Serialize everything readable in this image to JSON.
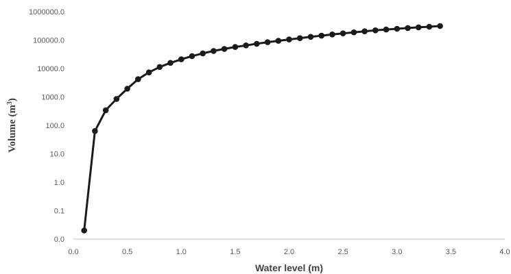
{
  "chart_data": {
    "type": "line",
    "title": "",
    "xlabel": "Water level (m)",
    "ylabel": "Volume (m",
    "ylabel_superscript": "3",
    "ylabel_suffix": ")",
    "xlim": [
      0.0,
      4.0
    ],
    "x_ticks": [
      "0.0",
      "0.5",
      "1.0",
      "1.5",
      "2.0",
      "2.5",
      "3.0",
      "3.5",
      "4.0"
    ],
    "y_scale": "log",
    "y_tick_values": [
      0,
      0.1,
      1,
      10,
      100,
      1000,
      10000,
      100000,
      1000000
    ],
    "y_ticks": [
      "0.0",
      "0.1",
      "1.0",
      "10.0",
      "100.0",
      "1000.0",
      "10000.0",
      "100000.0",
      "1000000.0"
    ],
    "grid": false,
    "legend": "none",
    "series": [
      {
        "color": "#1a1a1a",
        "x": [
          0.1,
          0.2,
          0.3,
          0.4,
          0.5,
          0.6,
          0.7,
          0.8,
          0.9,
          1.0,
          1.1,
          1.2,
          1.3,
          1.4,
          1.5,
          1.6,
          1.7,
          1.8,
          1.9,
          2.0,
          2.1,
          2.2,
          2.3,
          2.4,
          2.5,
          2.6,
          2.7,
          2.8,
          2.9,
          3.0,
          3.1,
          3.2,
          3.3,
          3.4
        ],
        "y": [
          0.02,
          63,
          340,
          850,
          1950,
          4200,
          7300,
          11300,
          15800,
          21000,
          27300,
          34000,
          41500,
          49000,
          57000,
          65000,
          74000,
          84000,
          94000,
          105000,
          117000,
          130000,
          143000,
          158000,
          172000,
          187000,
          203000,
          220000,
          235000,
          250000,
          265000,
          280000,
          295000,
          312000
        ]
      }
    ]
  }
}
